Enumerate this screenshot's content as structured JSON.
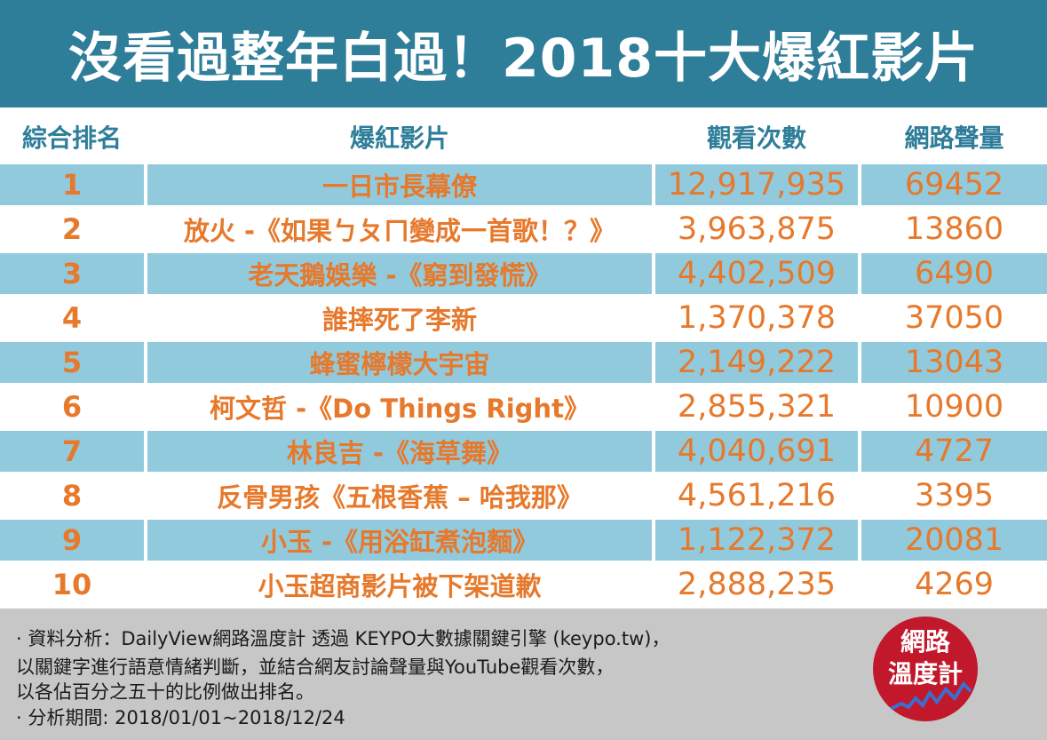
{
  "title": "沒看過整年白過！2018十大爆紅影片",
  "headers": {
    "rank": "綜合排名",
    "video": "爆紅影片",
    "views": "觀看次數",
    "buzz": "網路聲量"
  },
  "rows": [
    {
      "rank": "1",
      "video": "一日市長幕僚",
      "views": "12,917,935",
      "buzz": "69452"
    },
    {
      "rank": "2",
      "video": "放火 -《如果ㄅㄆㄇ變成一首歌！？》",
      "views": "3,963,875",
      "buzz": "13860"
    },
    {
      "rank": "3",
      "video": "老天鵝娛樂 -《窮到發慌》",
      "views": "4,402,509",
      "buzz": "6490"
    },
    {
      "rank": "4",
      "video": "誰摔死了李新",
      "views": "1,370,378",
      "buzz": "37050"
    },
    {
      "rank": "5",
      "video": "蜂蜜檸檬大宇宙",
      "views": "2,149,222",
      "buzz": "13043"
    },
    {
      "rank": "6",
      "video": "柯文哲 -《Do Things Right》",
      "views": "2,855,321",
      "buzz": "10900"
    },
    {
      "rank": "7",
      "video": "林良吉 -《海草舞》",
      "views": "4,040,691",
      "buzz": "4727"
    },
    {
      "rank": "8",
      "video": "反骨男孩《五根香蕉 – 哈我那》",
      "views": "4,561,216",
      "buzz": "3395"
    },
    {
      "rank": "9",
      "video": "小玉  -《用浴缸煮泡麵》",
      "views": "1,122,372",
      "buzz": "20081"
    },
    {
      "rank": "10",
      "video": "小玉超商影片被下架道歉",
      "views": "2,888,235",
      "buzz": "4269"
    }
  ],
  "notes": {
    "line1": "· 資料分析：DailyView網路溫度計 透過 KEYPO大數據關鍵引擎 (keypo.tw)，",
    "line2": "  以關鍵字進行語意情緒判斷，並結合網友討論聲量與YouTube觀看次數，",
    "line3": "  以各佔百分之五十的比例做出排名。",
    "line4": "· 分析期間: 2018/01/01~2018/12/24"
  },
  "logo": {
    "line1": "網路",
    "line2": "溫度計"
  },
  "colors": {
    "title_bg": "#2e7d99",
    "row_shade": "#92cadd",
    "accent_text": "#e6792b",
    "footer_bg": "#c7c7c7",
    "logo_bg": "#c2182b"
  }
}
